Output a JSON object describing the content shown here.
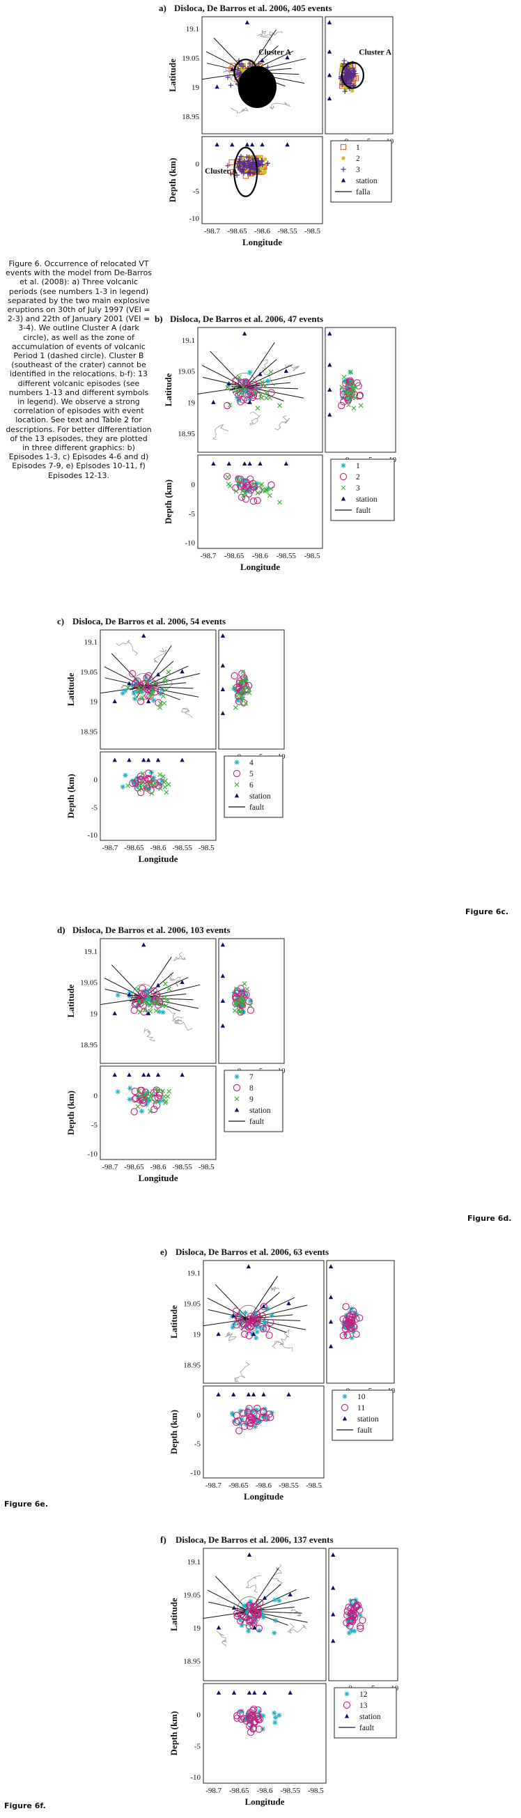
{
  "caption": "Figure 6. Occurrence of relocated VT events with the model from De-Barros et al. (2008): a) Three volcanic periods (see numbers 1-3 in legend) separated by the two main explosive eruptions on 30th of July 1997 (VEI = 2-3) and 22th of January 2001 (VEI = 3-4). We outline Cluster A (dark circle), as well as the zone of accumulation of events of volcanic Period 1 (dashed circle). Cluster B (southeast of the crater) cannot be identified in the relocations. b-f): 13 different volcanic episodes (see numbers 1-13 and different symbols in legend). We observe a strong correlation of episodes with event location. See text and Table 2 for descriptions. For better differentiation of the 13 episodes, they are plotted in three different graphics: b) Episodes 1-3, c) Episodes 4-6 and d) Episodes 7-9, e) Episodes 10-11, f) Episodes 12-13.",
  "figure_labels": {
    "c": "Figure 6c.",
    "d": "Figure 6d.",
    "e": "Figure 6e.",
    "f": "Figure 6f."
  },
  "axis_text": {
    "latitude": "Latitude",
    "longitude": "Longitude",
    "depth_km": "Depth (km)",
    "lat_ticks": [
      "19.1",
      "19.05",
      "19",
      "18.95"
    ],
    "lon_ticks": [
      "-98.7",
      "-98.65",
      "-98.6",
      "-98.55",
      "-98.5"
    ],
    "depth_ticks_y": [
      "0",
      "-5",
      "-10"
    ],
    "depth_ticks_x": [
      "0",
      "-5",
      "-10"
    ],
    "cluster_label": "Cluster A"
  },
  "chart_data": [
    {
      "type": "scatter",
      "panel": "a",
      "title": "Disloca, De Barros et al. 2006, 405 events",
      "legend": [
        "1",
        "2",
        "3",
        "station",
        "falla"
      ],
      "series": [
        {
          "name": "1",
          "symbol": "open-square",
          "color": "#e06020"
        },
        {
          "name": "2",
          "symbol": "dot",
          "color": "#c8c020"
        },
        {
          "name": "3",
          "symbol": "plus",
          "color": "#5a2a8a"
        }
      ],
      "xlim": [
        -98.72,
        -98.48
      ],
      "ylim": [
        18.92,
        19.12
      ],
      "depth_range": [
        5,
        -11
      ]
    },
    {
      "type": "scatter",
      "panel": "b",
      "title": "Disloca, De Barros et al. 2006, 47 events",
      "legend": [
        "1",
        "2",
        "3",
        "station",
        "fault"
      ],
      "series": [
        {
          "name": "1",
          "symbol": "asterisk",
          "color": "#20b0c0"
        },
        {
          "name": "2",
          "symbol": "circle",
          "color": "#c02080"
        },
        {
          "name": "3",
          "symbol": "cross",
          "color": "#40b040"
        }
      ],
      "xlim": [
        -98.72,
        -98.48
      ],
      "ylim": [
        18.92,
        19.12
      ],
      "depth_range": [
        5,
        -11
      ]
    },
    {
      "type": "scatter",
      "panel": "c",
      "title": "Disloca, De Barros et al. 2006, 54 events",
      "legend": [
        "4",
        "5",
        "6",
        "station",
        "fault"
      ],
      "series": [
        {
          "name": "4",
          "symbol": "asterisk",
          "color": "#20b0c0"
        },
        {
          "name": "5",
          "symbol": "circle",
          "color": "#c02080"
        },
        {
          "name": "6",
          "symbol": "cross",
          "color": "#40b040"
        }
      ],
      "xlim": [
        -98.72,
        -98.48
      ],
      "ylim": [
        18.92,
        19.12
      ],
      "depth_range": [
        5,
        -11
      ]
    },
    {
      "type": "scatter",
      "panel": "d",
      "title": "Disloca, De Barros et al. 2006, 103 events",
      "legend": [
        "7",
        "8",
        "9",
        "station",
        "fault"
      ],
      "series": [
        {
          "name": "7",
          "symbol": "asterisk",
          "color": "#20b0c0"
        },
        {
          "name": "8",
          "symbol": "circle",
          "color": "#c02080"
        },
        {
          "name": "9",
          "symbol": "cross",
          "color": "#40b040"
        }
      ],
      "xlim": [
        -98.72,
        -98.48
      ],
      "ylim": [
        18.92,
        19.12
      ],
      "depth_range": [
        5,
        -11
      ]
    },
    {
      "type": "scatter",
      "panel": "e",
      "title": "Disloca, De Barros et al. 2006, 63 events",
      "legend": [
        "10",
        "11",
        "station",
        "fault"
      ],
      "series": [
        {
          "name": "10",
          "symbol": "asterisk",
          "color": "#20b0c0"
        },
        {
          "name": "11",
          "symbol": "circle",
          "color": "#c02080"
        }
      ],
      "xlim": [
        -98.72,
        -98.48
      ],
      "ylim": [
        18.92,
        19.12
      ],
      "depth_range": [
        5,
        -11
      ]
    },
    {
      "type": "scatter",
      "panel": "f",
      "title": "Disloca, De Barros et al. 2006, 137 events",
      "legend": [
        "12",
        "13",
        "station",
        "fault"
      ],
      "series": [
        {
          "name": "12",
          "symbol": "asterisk",
          "color": "#20b0c0"
        },
        {
          "name": "13",
          "symbol": "circle",
          "color": "#c02080"
        }
      ],
      "xlim": [
        -98.72,
        -98.48
      ],
      "ylim": [
        18.92,
        19.12
      ],
      "depth_range": [
        5,
        -11
      ]
    }
  ],
  "colors": {
    "station": "#101060",
    "fault": "#111111",
    "outline": "#999999"
  }
}
